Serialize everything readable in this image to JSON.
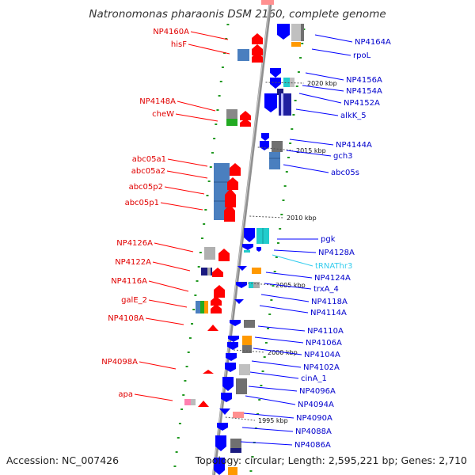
{
  "title": "Natronomonas pharaonis DSM 2160, complete genome",
  "footer": {
    "accession": "Accession: NC_007426",
    "summary": "Topology: circular; Length: 2,595,221 bp; Genes: 2,710"
  },
  "colors": {
    "backbone": "#9a9a9a",
    "forward_gene": "#ff0000",
    "reverse_gene": "#0000ff",
    "left_label": "#e00000",
    "right_label": "#0000cc",
    "rna_label": "#33ccee",
    "cog_blue": "#4a7fbf",
    "cog_gray": "#8a8a8a",
    "cog_orange": "#ff9900",
    "cog_cyan": "#22cccc",
    "cog_green": "#22aa22",
    "cog_navy": "#1a1a80",
    "dot_green": "#229922"
  },
  "scale_labels": [
    {
      "text": "2020 kbp"
    },
    {
      "text": "2015 kbp"
    },
    {
      "text": "2010 kbp"
    },
    {
      "text": "2005 kbp"
    },
    {
      "text": "2000 kbp"
    },
    {
      "text": "1995 kbp"
    }
  ],
  "left_labels": [
    {
      "text": "NP4160A"
    },
    {
      "text": "hisF"
    },
    {
      "text": "NP4148A"
    },
    {
      "text": "cheW"
    },
    {
      "text": "abc05a1"
    },
    {
      "text": "abc05a2"
    },
    {
      "text": "abc05p2"
    },
    {
      "text": "abc05p1"
    },
    {
      "text": "NP4126A"
    },
    {
      "text": "NP4122A"
    },
    {
      "text": "NP4116A"
    },
    {
      "text": "galE_2"
    },
    {
      "text": "NP4108A"
    },
    {
      "text": "NP4098A"
    },
    {
      "text": "apa"
    }
  ],
  "right_labels": [
    {
      "text": "NP4164A"
    },
    {
      "text": "rpoL"
    },
    {
      "text": "NP4156A"
    },
    {
      "text": "NP4154A"
    },
    {
      "text": "NP4152A"
    },
    {
      "text": "alkK_5"
    },
    {
      "text": "NP4144A"
    },
    {
      "text": "gch3"
    },
    {
      "text": "abc05s"
    },
    {
      "text": "pgk"
    },
    {
      "text": "NP4128A"
    },
    {
      "text": "tRNAThr3"
    },
    {
      "text": "NP4124A"
    },
    {
      "text": "trxA_4"
    },
    {
      "text": "NP4118A"
    },
    {
      "text": "NP4114A"
    },
    {
      "text": "NP4110A"
    },
    {
      "text": "NP4106A"
    },
    {
      "text": "NP4104A"
    },
    {
      "text": "NP4102A"
    },
    {
      "text": "cinA_1"
    },
    {
      "text": "NP4096A"
    },
    {
      "text": "NP4094A"
    },
    {
      "text": "NP4090A"
    },
    {
      "text": "NP4088A"
    },
    {
      "text": "NP4086A"
    }
  ]
}
